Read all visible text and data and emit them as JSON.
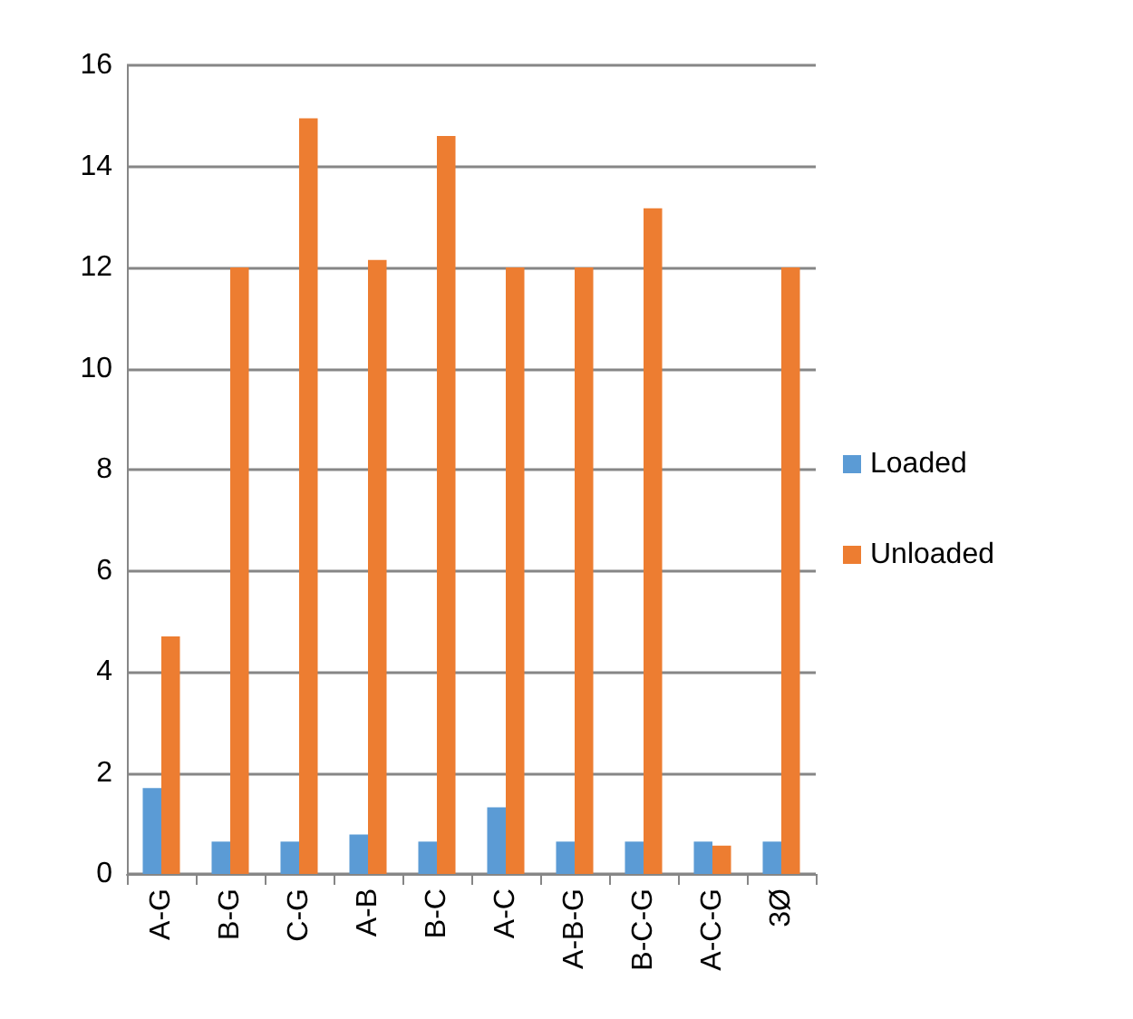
{
  "chart_data": {
    "type": "bar",
    "categories": [
      "A-G",
      "B-G",
      "C-G",
      "A-B",
      "B-C",
      "A-C",
      "A-B-G",
      "B-C-G",
      "A-C-G",
      "3Ø"
    ],
    "series": [
      {
        "name": "Loaded",
        "color": "#5b9bd5",
        "values": [
          1.7,
          0.64,
          0.64,
          0.78,
          0.64,
          1.32,
          0.64,
          0.64,
          0.64,
          0.64
        ]
      },
      {
        "name": "Unloaded",
        "color": "#ed7d31",
        "values": [
          4.7,
          12,
          14.95,
          12.15,
          14.6,
          12,
          12,
          13.17,
          0.56,
          12
        ]
      }
    ],
    "ylim": [
      0,
      16
    ],
    "yticks": [
      0,
      2,
      4,
      6,
      8,
      10,
      12,
      14,
      16
    ],
    "grid": "y",
    "legend": "right"
  }
}
